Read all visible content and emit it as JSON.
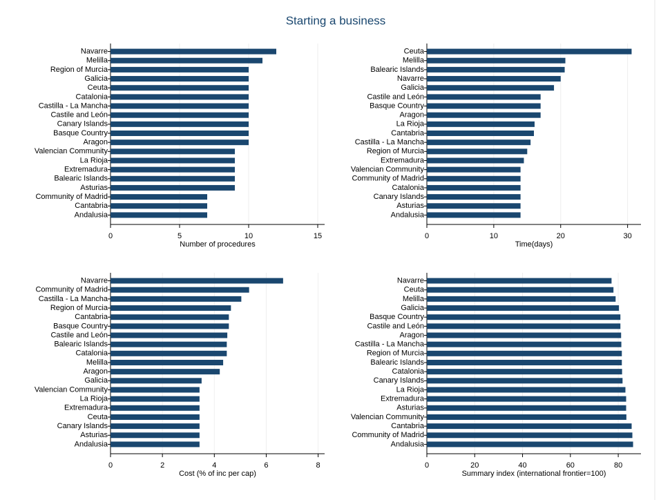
{
  "title": "Starting a business",
  "chart_data": [
    {
      "type": "bar",
      "orientation": "horizontal",
      "xlabel": "Number of procedures",
      "color": "#1a476f",
      "grid": true,
      "categories": [
        "Navarre",
        "Melilla",
        "Region of Murcia",
        "Galicia",
        "Ceuta",
        "Catalonia",
        "Castilla - La Mancha",
        "Castile and León",
        "Canary Islands",
        "Basque Country",
        "Aragon",
        "Valencian Community",
        "La Rioja",
        "Extremadura",
        "Balearic Islands",
        "Asturias",
        "Community of Madrid",
        "Cantabria",
        "Andalusia"
      ],
      "values": [
        12,
        11,
        10,
        10,
        10,
        10,
        10,
        10,
        10,
        10,
        10,
        9,
        9,
        9,
        9,
        9,
        7,
        7,
        7
      ],
      "xlim": [
        0,
        15.5
      ],
      "xticks": [
        0,
        5,
        10,
        15
      ]
    },
    {
      "type": "bar",
      "orientation": "horizontal",
      "xlabel": "Time(days)",
      "color": "#1a476f",
      "grid": true,
      "categories": [
        "Ceuta",
        "Melilla",
        "Balearic Islands",
        "Navarre",
        "Galicia",
        "Castile and León",
        "Basque Country",
        "Aragon",
        "La Rioja",
        "Cantabria",
        "Castilla - La Mancha",
        "Region of Murcia",
        "Extremadura",
        "Valencian Community",
        "Community of Madrid",
        "Catalonia",
        "Canary Islands",
        "Asturias",
        "Andalusia"
      ],
      "values": [
        30.6,
        20.7,
        20.6,
        20,
        19,
        17,
        17,
        17,
        16.1,
        16,
        15.5,
        15,
        14.5,
        14,
        14,
        14,
        14,
        14,
        14
      ],
      "xlim": [
        0,
        32
      ],
      "xticks": [
        0,
        10,
        20,
        30
      ]
    },
    {
      "type": "bar",
      "orientation": "horizontal",
      "xlabel": "Cost (% of inc per cap)",
      "color": "#1a476f",
      "grid": true,
      "categories": [
        "Navarre",
        "Community of Madrid",
        "Castilla - La Mancha",
        "Region of Murcia",
        "Cantabria",
        "Basque Country",
        "Castile and León",
        "Balearic Islands",
        "Catalonia",
        "Melilla",
        "Aragon",
        "Galicia",
        "Valencian Community",
        "La Rioja",
        "Extremadura",
        "Ceuta",
        "Canary Islands",
        "Asturias",
        "Andalusia"
      ],
      "values": [
        6.65,
        5.34,
        5.04,
        4.64,
        4.56,
        4.56,
        4.5,
        4.48,
        4.48,
        4.34,
        4.21,
        3.51,
        3.43,
        3.43,
        3.43,
        3.43,
        3.43,
        3.43,
        3.43
      ],
      "xlim": [
        0,
        8.25
      ],
      "xticks": [
        0,
        2,
        4,
        6,
        8
      ]
    },
    {
      "type": "bar",
      "orientation": "horizontal",
      "xlabel": "Summary index (international frontier=100)",
      "color": "#1a476f",
      "grid": true,
      "categories": [
        "Navarre",
        "Ceuta",
        "Melilla",
        "Galicia",
        "Basque Country",
        "Castile and León",
        "Aragon",
        "Castilla - La Mancha",
        "Region of Murcia",
        "Balearic Islands",
        "Catalonia",
        "Canary Islands",
        "La Rioja",
        "Extremadura",
        "Asturias",
        "Valencian Community",
        "Cantabria",
        "Community of Madrid",
        "Andalusia"
      ],
      "values": [
        77.2,
        78,
        78.9,
        80.3,
        80.9,
        80.9,
        81.2,
        81.3,
        81.5,
        81.5,
        81.6,
        81.8,
        83,
        83.3,
        83.3,
        83.4,
        85.6,
        85.9,
        86.2
      ],
      "xlim": [
        0,
        89.5
      ],
      "xticks": [
        0,
        20,
        40,
        60,
        80
      ]
    }
  ]
}
